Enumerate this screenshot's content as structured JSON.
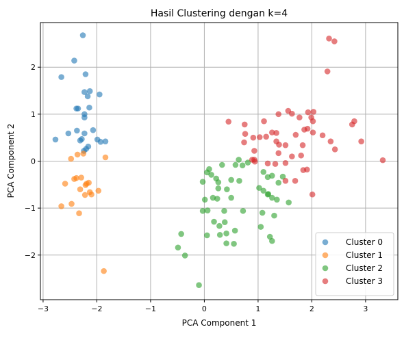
{
  "chart_data": {
    "type": "scatter",
    "title": "Hasil Clustering dengan k=4",
    "xlabel": "PCA Component 1",
    "ylabel": "PCA Component 2",
    "xlim": [
      -3.05,
      3.6
    ],
    "ylim": [
      -2.95,
      2.95
    ],
    "xticks": [
      -3,
      -2,
      -1,
      0,
      1,
      2,
      3
    ],
    "yticks": [
      -2,
      -1,
      0,
      1,
      2
    ],
    "tick_labels_x": [
      "−3",
      "−2",
      "−1",
      "0",
      "1",
      "2",
      "3"
    ],
    "tick_labels_y": [
      "−2",
      "−1",
      "0",
      "1",
      "2"
    ],
    "grid": true,
    "legend_position": "lower-right",
    "series": [
      {
        "name": "Cluster 0",
        "color": "#1f77b4",
        "points": [
          [
            -2.26,
            2.68
          ],
          [
            -2.42,
            2.14
          ],
          [
            -2.66,
            1.79
          ],
          [
            -2.21,
            1.85
          ],
          [
            -2.13,
            1.49
          ],
          [
            -2.23,
            1.47
          ],
          [
            -1.95,
            1.42
          ],
          [
            -2.17,
            1.38
          ],
          [
            -2.38,
            1.12
          ],
          [
            -2.35,
            1.12
          ],
          [
            -2.14,
            1.14
          ],
          [
            -2.23,
            1.0
          ],
          [
            -2.23,
            0.93
          ],
          [
            -2.53,
            0.59
          ],
          [
            -2.37,
            0.65
          ],
          [
            -2.07,
            0.66
          ],
          [
            -2.23,
            0.59
          ],
          [
            -2.28,
            0.47
          ],
          [
            -2.31,
            0.44
          ],
          [
            -1.99,
            0.46
          ],
          [
            -1.84,
            0.42
          ],
          [
            -1.93,
            0.41
          ],
          [
            -2.77,
            0.46
          ],
          [
            -2.16,
            0.31
          ],
          [
            -2.2,
            0.26
          ],
          [
            -2.24,
            0.22
          ]
        ]
      },
      {
        "name": "Cluster 1",
        "color": "#ff7f0e",
        "points": [
          [
            -2.36,
            0.14
          ],
          [
            -2.25,
            0.16
          ],
          [
            -2.48,
            0.05
          ],
          [
            -1.84,
            0.08
          ],
          [
            -2.38,
            -0.36
          ],
          [
            -2.42,
            -0.38
          ],
          [
            -2.29,
            -0.35
          ],
          [
            -2.59,
            -0.48
          ],
          [
            -2.19,
            -0.48
          ],
          [
            -2.15,
            -0.46
          ],
          [
            -2.21,
            -0.51
          ],
          [
            -2.31,
            -0.6
          ],
          [
            -2.13,
            -0.66
          ],
          [
            -1.97,
            -0.63
          ],
          [
            -2.22,
            -0.72
          ],
          [
            -2.1,
            -0.71
          ],
          [
            -2.66,
            -0.96
          ],
          [
            -2.47,
            -0.91
          ],
          [
            -2.33,
            -1.11
          ],
          [
            -1.87,
            -2.34
          ]
        ]
      },
      {
        "name": "Cluster 2",
        "color": "#2ca02c",
        "points": [
          [
            0.64,
            0.03
          ],
          [
            0.33,
            -0.08
          ],
          [
            0.71,
            -0.09
          ],
          [
            0.81,
            -0.03
          ],
          [
            0.58,
            -0.08
          ],
          [
            0.09,
            -0.17
          ],
          [
            0.05,
            -0.24
          ],
          [
            0.13,
            -0.29
          ],
          [
            1.1,
            -0.23
          ],
          [
            1.18,
            -0.34
          ],
          [
            1.26,
            -0.31
          ],
          [
            1.46,
            -0.33
          ],
          [
            0.22,
            -0.37
          ],
          [
            -0.03,
            -0.44
          ],
          [
            0.26,
            -0.45
          ],
          [
            0.5,
            -0.4
          ],
          [
            0.65,
            -0.42
          ],
          [
            1.38,
            -0.46
          ],
          [
            0.26,
            -0.58
          ],
          [
            0.42,
            -0.6
          ],
          [
            1.02,
            -0.57
          ],
          [
            1.1,
            -0.63
          ],
          [
            1.18,
            -0.71
          ],
          [
            1.19,
            -0.7
          ],
          [
            0.16,
            -0.78
          ],
          [
            0.24,
            -0.8
          ],
          [
            0.01,
            -0.82
          ],
          [
            0.5,
            -0.78
          ],
          [
            1.26,
            -0.78
          ],
          [
            1.35,
            -0.82
          ],
          [
            1.57,
            -0.88
          ],
          [
            0.06,
            -1.05
          ],
          [
            -0.03,
            -1.06
          ],
          [
            0.37,
            -1.06
          ],
          [
            0.72,
            -1.06
          ],
          [
            1.08,
            -1.1
          ],
          [
            1.3,
            -1.16
          ],
          [
            0.18,
            -1.29
          ],
          [
            0.38,
            -1.3
          ],
          [
            0.28,
            -1.38
          ],
          [
            1.05,
            -1.4
          ],
          [
            0.57,
            -1.48
          ],
          [
            0.41,
            -1.54
          ],
          [
            -0.43,
            -1.55
          ],
          [
            0.05,
            -1.58
          ],
          [
            0.29,
            -1.57
          ],
          [
            1.22,
            -1.61
          ],
          [
            1.26,
            -1.7
          ],
          [
            0.41,
            -1.75
          ],
          [
            0.55,
            -1.76
          ],
          [
            -0.49,
            -1.84
          ],
          [
            -0.36,
            -2.01
          ],
          [
            -0.1,
            -2.64
          ]
        ]
      },
      {
        "name": "Cluster 3",
        "color": "#d62728",
        "points": [
          [
            2.32,
            2.61
          ],
          [
            2.42,
            2.55
          ],
          [
            2.29,
            1.91
          ],
          [
            1.93,
            1.04
          ],
          [
            1.56,
            1.07
          ],
          [
            2.03,
            1.05
          ],
          [
            1.38,
            1.0
          ],
          [
            1.63,
            1.01
          ],
          [
            1.77,
            0.93
          ],
          [
            1.99,
            0.93
          ],
          [
            2.02,
            0.85
          ],
          [
            2.79,
            0.85
          ],
          [
            2.75,
            0.78
          ],
          [
            1.11,
            0.85
          ],
          [
            0.45,
            0.84
          ],
          [
            0.75,
            0.78
          ],
          [
            1.92,
            0.69
          ],
          [
            1.86,
            0.67
          ],
          [
            1.26,
            0.61
          ],
          [
            1.34,
            0.6
          ],
          [
            2.02,
            0.61
          ],
          [
            0.76,
            0.58
          ],
          [
            1.7,
            0.56
          ],
          [
            1.15,
            0.52
          ],
          [
            1.03,
            0.51
          ],
          [
            0.91,
            0.5
          ],
          [
            2.2,
            0.55
          ],
          [
            2.35,
            0.42
          ],
          [
            2.92,
            0.42
          ],
          [
            1.34,
            0.42
          ],
          [
            0.74,
            0.4
          ],
          [
            1.39,
            0.35
          ],
          [
            1.51,
            0.34
          ],
          [
            1.83,
            0.34
          ],
          [
            2.43,
            0.25
          ],
          [
            0.93,
            0.22
          ],
          [
            1.38,
            0.17
          ],
          [
            1.8,
            0.12
          ],
          [
            1.63,
            0.1
          ],
          [
            0.93,
            0.03
          ],
          [
            0.89,
            0.03
          ],
          [
            0.94,
            -0.01
          ],
          [
            1.32,
            -0.06
          ],
          [
            1.51,
            -0.04
          ],
          [
            1.18,
            -0.05
          ],
          [
            1.91,
            -0.18
          ],
          [
            1.84,
            -0.19
          ],
          [
            3.32,
            0.02
          ],
          [
            1.51,
            -0.42
          ],
          [
            1.69,
            -0.42
          ],
          [
            2.01,
            -0.71
          ]
        ]
      }
    ]
  }
}
